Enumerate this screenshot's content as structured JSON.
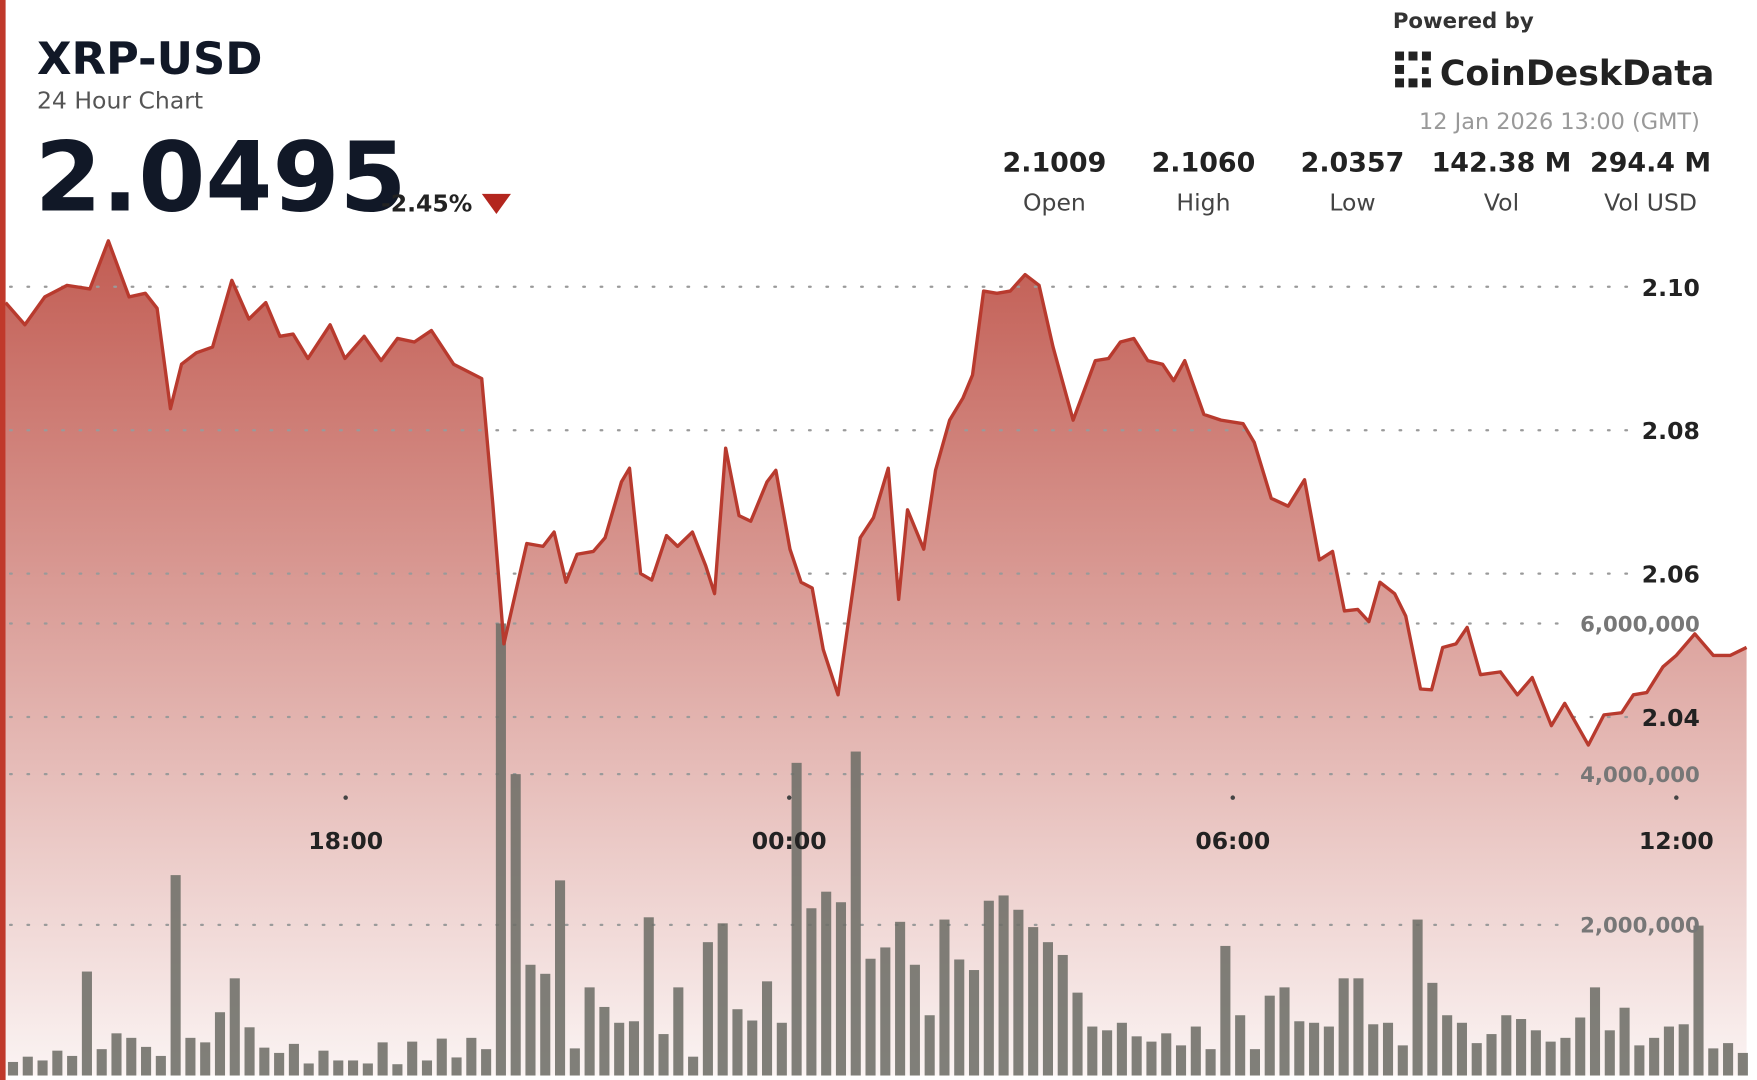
{
  "header": {
    "title": "XRP-USD",
    "subtitle": "24 Hour Chart",
    "price": "2.0495",
    "change": "-2.45%",
    "powered_by": "Powered by",
    "brand": "CoinDeskData",
    "timestamp": "12 Jan 2026 13:00 (GMT)",
    "stats": [
      {
        "value": "2.1009",
        "label": "Open"
      },
      {
        "value": "2.1060",
        "label": "High"
      },
      {
        "value": "2.0357",
        "label": "Low"
      },
      {
        "value": "142.38 M",
        "label": "Vol"
      },
      {
        "value": "294.4 M",
        "label": "Vol USD"
      }
    ]
  },
  "chart_data": {
    "type": "line",
    "xlim": [
      13.4,
      36.97
    ],
    "xticks": [
      {
        "value": 18,
        "label": "18:00"
      },
      {
        "value": 24,
        "label": "00:00"
      },
      {
        "value": 30,
        "label": "06:00"
      },
      {
        "value": 36,
        "label": "12:00"
      }
    ],
    "ylim": [
      1.99,
      2.11
    ],
    "yticks": [
      {
        "value": 2.04,
        "label": "2.04"
      },
      {
        "value": 2.06,
        "label": "2.06"
      },
      {
        "value": 2.08,
        "label": "2.08"
      },
      {
        "value": 2.1,
        "label": "2.10"
      }
    ],
    "y2lim": [
      0,
      11420000
    ],
    "y2ticks": [
      {
        "value": 2000000,
        "label": "2,000,000"
      },
      {
        "value": 4000000,
        "label": "4,000,000"
      },
      {
        "value": 6000000,
        "label": "6,000,000"
      }
    ],
    "grid": true,
    "price": {
      "color": "#b83a2e",
      "x": [
        13.4,
        13.66,
        13.93,
        14.23,
        14.54,
        14.79,
        15.07,
        15.29,
        15.45,
        15.63,
        15.78,
        15.98,
        16.2,
        16.46,
        16.69,
        16.92,
        17.11,
        17.29,
        17.49,
        17.79,
        17.99,
        18.25,
        18.48,
        18.7,
        18.93,
        19.16,
        19.46,
        19.84,
        19.99,
        20.14,
        20.45,
        20.67,
        20.82,
        20.98,
        21.13,
        21.35,
        21.51,
        21.73,
        21.84,
        21.99,
        22.14,
        22.34,
        22.49,
        22.69,
        22.87,
        22.99,
        23.14,
        23.32,
        23.48,
        23.7,
        23.82,
        24.01,
        24.16,
        24.31,
        24.46,
        24.66,
        24.96,
        25.14,
        25.34,
        25.48,
        25.6,
        25.82,
        25.98,
        26.17,
        26.35,
        26.48,
        26.63,
        26.81,
        26.99,
        27.19,
        27.38,
        27.57,
        27.84,
        28.14,
        28.32,
        28.48,
        28.66,
        28.85,
        29.05,
        29.2,
        29.35,
        29.61,
        29.84,
        30.14,
        30.29,
        30.52,
        30.75,
        30.97,
        31.17,
        31.35,
        31.51,
        31.69,
        31.84,
        31.99,
        32.19,
        32.34,
        32.54,
        32.69,
        32.84,
        33.02,
        33.17,
        33.35,
        33.62,
        33.85,
        34.05,
        34.31,
        34.49,
        34.81,
        35.02,
        35.26,
        35.42,
        35.6,
        35.82,
        36.0,
        36.25,
        36.5,
        36.73,
        36.95
      ],
      "values": [
        2.0978,
        2.0947,
        2.0986,
        2.1002,
        2.0997,
        2.1064,
        2.0986,
        2.0991,
        2.097,
        2.083,
        2.0892,
        2.0908,
        2.0916,
        2.1009,
        2.0955,
        2.0978,
        2.0931,
        2.0934,
        2.09,
        2.0947,
        2.09,
        2.0931,
        2.0897,
        2.0928,
        2.0923,
        2.0939,
        2.0892,
        2.0872,
        2.0697,
        2.0502,
        2.0642,
        2.0638,
        2.0658,
        2.0588,
        2.0627,
        2.0631,
        2.065,
        2.0728,
        2.0747,
        2.06,
        2.0591,
        2.0653,
        2.0638,
        2.0658,
        2.0611,
        2.0572,
        2.0775,
        2.0681,
        2.0673,
        2.0728,
        2.0744,
        2.0634,
        2.0588,
        2.058,
        2.0494,
        2.0431,
        2.065,
        2.0678,
        2.0747,
        2.0564,
        2.0689,
        2.0634,
        2.0744,
        2.0814,
        2.0845,
        2.0877,
        2.0994,
        2.0991,
        2.0994,
        2.1017,
        2.1002,
        2.0916,
        2.0814,
        2.0897,
        2.09,
        2.0923,
        2.0928,
        2.0897,
        2.0892,
        2.0869,
        2.0897,
        2.0822,
        2.0814,
        2.0809,
        2.0783,
        2.0705,
        2.0694,
        2.0731,
        2.0619,
        2.0631,
        2.0548,
        2.055,
        2.0533,
        2.0588,
        2.0572,
        2.0541,
        2.0439,
        2.0438,
        2.0497,
        2.0502,
        2.0525,
        2.0459,
        2.0463,
        2.0431,
        2.0455,
        2.0388,
        2.0419,
        2.0361,
        2.0403,
        2.0406,
        2.0431,
        2.0434,
        2.047,
        2.0486,
        2.0516,
        2.0486,
        2.0486,
        2.0497
      ]
    },
    "volume": {
      "color": "#6e6e68",
      "axis": "y2",
      "x": [
        13.5,
        13.7,
        13.9,
        14.1,
        14.3,
        14.5,
        14.7,
        14.9,
        15.1,
        15.3,
        15.5,
        15.7,
        15.9,
        16.1,
        16.3,
        16.5,
        16.7,
        16.9,
        17.1,
        17.3,
        17.5,
        17.7,
        17.9,
        18.1,
        18.3,
        18.5,
        18.7,
        18.9,
        19.1,
        19.3,
        19.5,
        19.7,
        19.9,
        20.1,
        20.3,
        20.5,
        20.7,
        20.9,
        21.1,
        21.3,
        21.5,
        21.7,
        21.9,
        22.1,
        22.3,
        22.5,
        22.7,
        22.9,
        23.1,
        23.3,
        23.5,
        23.7,
        23.9,
        24.1,
        24.3,
        24.5,
        24.7,
        24.9,
        25.1,
        25.3,
        25.5,
        25.7,
        25.9,
        26.1,
        26.3,
        26.5,
        26.7,
        26.9,
        27.1,
        27.3,
        27.5,
        27.7,
        27.9,
        28.1,
        28.3,
        28.5,
        28.7,
        28.9,
        29.1,
        29.3,
        29.5,
        29.7,
        29.9,
        30.1,
        30.3,
        30.5,
        30.7,
        30.9,
        31.1,
        31.3,
        31.5,
        31.7,
        31.9,
        32.1,
        32.3,
        32.5,
        32.7,
        32.9,
        33.1,
        33.3,
        33.5,
        33.7,
        33.9,
        34.1,
        34.3,
        34.5,
        34.7,
        34.9,
        35.1,
        35.3,
        35.5,
        35.7,
        35.9,
        36.1,
        36.3,
        36.5,
        36.7,
        36.9
      ],
      "values": [
        180000,
        250000,
        200000,
        330000,
        260000,
        1380000,
        350000,
        560000,
        500000,
        380000,
        260000,
        2660000,
        500000,
        440000,
        840000,
        1290000,
        640000,
        370000,
        300000,
        420000,
        160000,
        330000,
        200000,
        200000,
        160000,
        440000,
        150000,
        450000,
        200000,
        490000,
        240000,
        500000,
        350000,
        6000000,
        4000000,
        1470000,
        1350000,
        2590000,
        360000,
        1170000,
        910000,
        700000,
        720000,
        2100000,
        550000,
        1170000,
        250000,
        1770000,
        2020000,
        880000,
        730000,
        1250000,
        700000,
        4150000,
        2220000,
        2440000,
        2300000,
        4300000,
        1550000,
        1700000,
        2040000,
        1470000,
        800000,
        2070000,
        1540000,
        1400000,
        2320000,
        2390000,
        2200000,
        1970000,
        1770000,
        1600000,
        1100000,
        650000,
        600000,
        700000,
        520000,
        450000,
        560000,
        400000,
        650000,
        350000,
        1720000,
        800000,
        350000,
        1060000,
        1170000,
        720000,
        700000,
        650000,
        1290000,
        1290000,
        680000,
        700000,
        400000,
        2070000,
        1230000,
        800000,
        700000,
        430000,
        550000,
        800000,
        750000,
        600000,
        450000,
        500000,
        770000,
        1170000,
        600000,
        900000,
        400000,
        500000,
        650000,
        680000,
        1990000,
        360000,
        430000,
        300000
      ]
    }
  }
}
